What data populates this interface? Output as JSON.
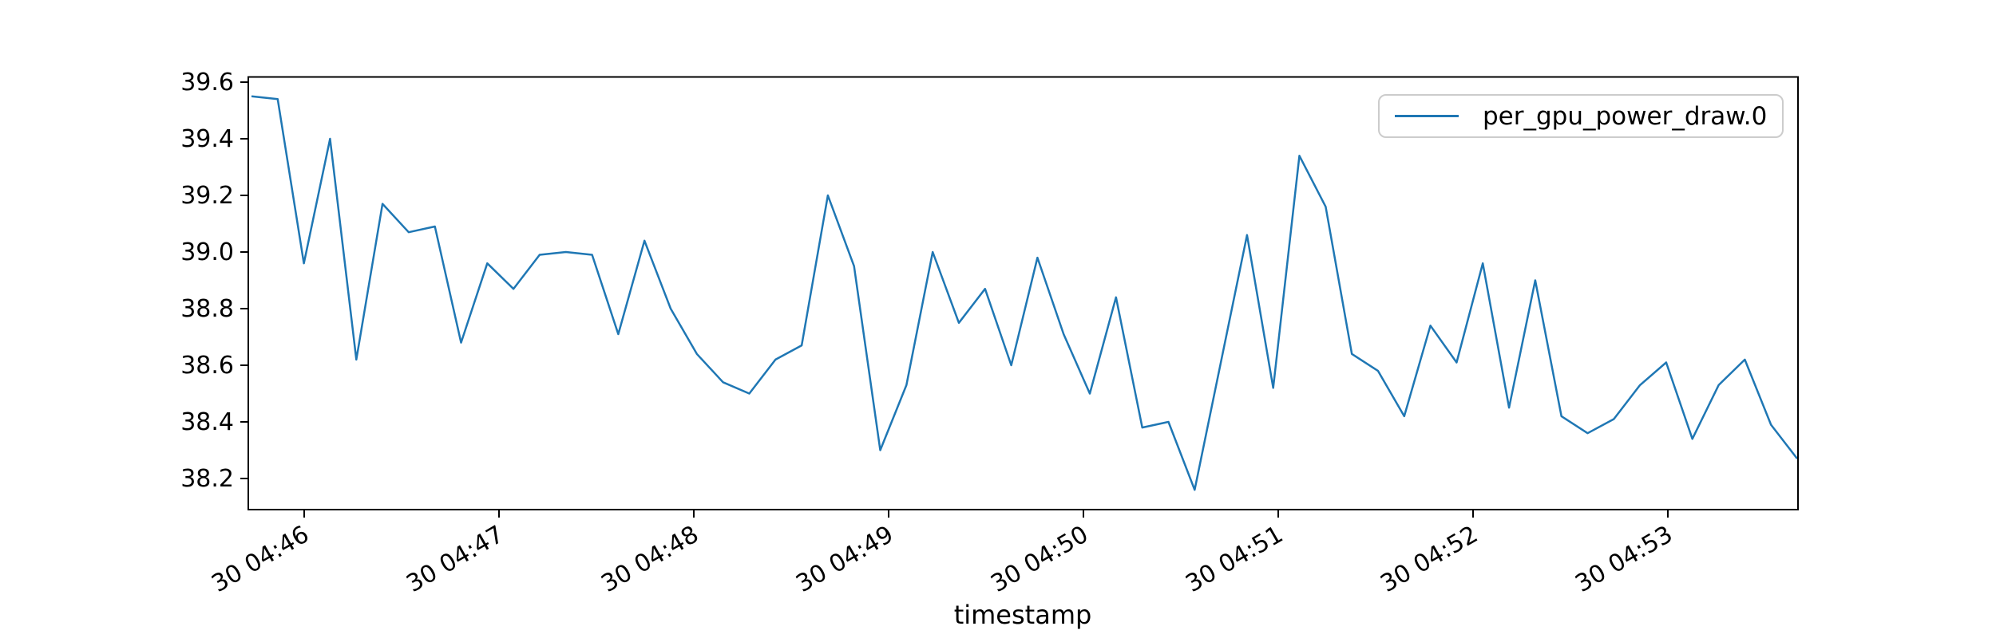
{
  "figure": {
    "background": "#ffffff",
    "axis_color": "#000000"
  },
  "chart_data": {
    "type": "line",
    "title": "",
    "xlabel": "timestamp",
    "ylabel": "",
    "grid": false,
    "legend": {
      "position": "upper right",
      "entries": [
        "per_gpu_power_draw.0"
      ]
    },
    "line_color": "#1f77b4",
    "y_tick_labels": [
      "39.6",
      "39.4",
      "39.2",
      "39.0",
      "38.8",
      "38.6",
      "38.4",
      "38.2"
    ],
    "x_tick_labels": [
      "30 04:46",
      "30 04:47",
      "30 04:48",
      "30 04:49",
      "30 04:50",
      "30 04:51",
      "30 04:52",
      "30 04:53"
    ],
    "ylim": [
      38.09,
      39.62
    ],
    "series": [
      {
        "name": "per_gpu_power_draw.0",
        "color": "#1f77b4",
        "x": [
          "04:45:44",
          "04:45:52",
          "04:46:00",
          "04:46:08",
          "04:46:16",
          "04:46:24",
          "04:46:32",
          "04:46:40",
          "04:46:48",
          "04:46:56",
          "04:47:04",
          "04:47:12",
          "04:47:20",
          "04:47:28",
          "04:47:36",
          "04:47:44",
          "04:47:52",
          "04:48:00",
          "04:48:08",
          "04:48:16",
          "04:48:24",
          "04:48:32",
          "04:48:40",
          "04:48:48",
          "04:48:56",
          "04:49:04",
          "04:49:12",
          "04:49:20",
          "04:49:28",
          "04:49:36",
          "04:49:44",
          "04:49:52",
          "04:50:00",
          "04:50:08",
          "04:50:16",
          "04:50:24",
          "04:50:32",
          "04:50:40",
          "04:50:48",
          "04:50:56",
          "04:51:04",
          "04:51:12",
          "04:51:20",
          "04:51:28",
          "04:51:36",
          "04:51:44",
          "04:51:52",
          "04:52:00",
          "04:52:08",
          "04:52:16",
          "04:52:24",
          "04:52:32",
          "04:52:40",
          "04:52:48",
          "04:52:56",
          "04:53:04",
          "04:53:12",
          "04:53:20",
          "04:53:28",
          "04:53:36"
        ],
        "values": [
          39.55,
          39.54,
          38.96,
          39.4,
          38.62,
          39.17,
          39.07,
          39.09,
          38.68,
          38.96,
          38.87,
          38.99,
          39.0,
          38.99,
          38.71,
          39.04,
          38.8,
          38.64,
          38.54,
          38.5,
          38.62,
          38.67,
          39.2,
          38.95,
          38.3,
          38.53,
          39.0,
          38.75,
          38.87,
          38.6,
          38.98,
          38.71,
          38.5,
          38.84,
          38.38,
          38.4,
          38.16,
          38.61,
          39.06,
          38.52,
          39.34,
          39.16,
          38.64,
          38.58,
          38.42,
          38.74,
          38.61,
          38.96,
          38.45,
          38.9,
          38.42,
          38.36,
          38.41,
          38.53,
          38.61,
          38.34,
          38.53,
          38.62,
          38.39,
          38.27
        ]
      }
    ]
  }
}
